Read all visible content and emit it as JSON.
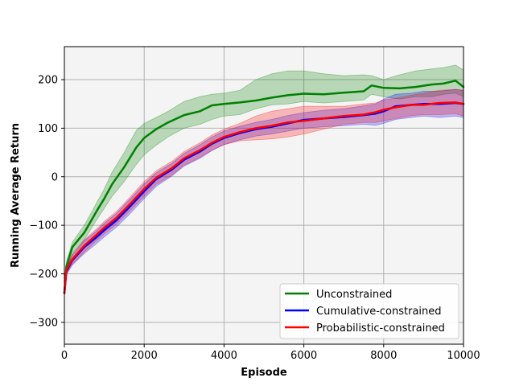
{
  "chart_data": {
    "type": "line",
    "title": "",
    "xlabel": "Episode",
    "ylabel": "Running Average Return",
    "xlim": [
      0,
      10000
    ],
    "ylim": [
      -345,
      268
    ],
    "xticks": [
      0,
      2000,
      4000,
      6000,
      8000,
      10000
    ],
    "yticks": [
      -300,
      -200,
      -100,
      0,
      100,
      200
    ],
    "xtick_labels": [
      "0",
      "2000",
      "4000",
      "6000",
      "8000",
      "10000"
    ],
    "ytick_labels": [
      "−300",
      "−200",
      "−100",
      "0",
      "100",
      "200"
    ],
    "grid": true,
    "legend_position": "bottom-right",
    "colors": {
      "Unconstrained": "#008000",
      "Cumulative-constrained": "#0000ff",
      "Probabilistic-constrained": "#ff0000",
      "plot_background": "#f4f4f4"
    },
    "series": [
      {
        "name": "Unconstrained",
        "x": [
          0,
          50,
          200,
          500,
          800,
          1000,
          1200,
          1500,
          1800,
          2000,
          2300,
          2600,
          3000,
          3400,
          3700,
          4000,
          4400,
          4800,
          5200,
          5600,
          6000,
          6500,
          7000,
          7500,
          7700,
          8000,
          8400,
          8800,
          9200,
          9500,
          9800,
          10000
        ],
        "y": [
          -240,
          -185,
          -145,
          -115,
          -72,
          -45,
          -15,
          20,
          60,
          80,
          98,
          112,
          127,
          135,
          147,
          150,
          153,
          157,
          163,
          168,
          171,
          170,
          173,
          176,
          188,
          183,
          182,
          185,
          190,
          192,
          198,
          185
        ],
        "upper": [
          -235,
          -175,
          -135,
          -100,
          -55,
          -25,
          10,
          50,
          95,
          110,
          122,
          135,
          155,
          165,
          170,
          172,
          178,
          200,
          212,
          218,
          218,
          212,
          208,
          210,
          208,
          200,
          210,
          218,
          222,
          225,
          230,
          220
        ],
        "lower": [
          -245,
          -195,
          -158,
          -130,
          -90,
          -65,
          -40,
          -10,
          25,
          45,
          65,
          82,
          100,
          108,
          118,
          125,
          128,
          140,
          148,
          150,
          155,
          152,
          155,
          158,
          170,
          165,
          160,
          165,
          165,
          170,
          172,
          165
        ]
      },
      {
        "name": "Cumulative-constrained",
        "x": [
          0,
          50,
          200,
          500,
          800,
          1000,
          1300,
          1600,
          2000,
          2300,
          2700,
          3000,
          3400,
          3700,
          4000,
          4400,
          4800,
          5200,
          5600,
          6000,
          6500,
          7000,
          7500,
          7800,
          8000,
          8300,
          8700,
          9000,
          9400,
          9800,
          10000
        ],
        "y": [
          -240,
          -195,
          -172,
          -145,
          -125,
          -110,
          -90,
          -65,
          -30,
          -5,
          15,
          35,
          52,
          68,
          80,
          90,
          98,
          103,
          110,
          117,
          120,
          123,
          127,
          130,
          135,
          145,
          148,
          150,
          150,
          152,
          150
        ],
        "upper": [
          -235,
          -188,
          -162,
          -132,
          -112,
          -96,
          -76,
          -50,
          -15,
          8,
          28,
          48,
          66,
          82,
          94,
          104,
          112,
          118,
          126,
          132,
          137,
          140,
          146,
          150,
          160,
          170,
          172,
          176,
          176,
          180,
          178
        ],
        "lower": [
          -245,
          -202,
          -182,
          -158,
          -138,
          -124,
          -104,
          -80,
          -45,
          -20,
          2,
          22,
          38,
          54,
          66,
          76,
          84,
          88,
          94,
          100,
          103,
          105,
          108,
          106,
          110,
          118,
          122,
          125,
          122,
          125,
          122
        ]
      },
      {
        "name": "Probabilistic-constrained",
        "x": [
          0,
          50,
          200,
          500,
          800,
          1000,
          1300,
          1600,
          2000,
          2300,
          2700,
          3000,
          3400,
          3700,
          4000,
          4400,
          4800,
          5200,
          5600,
          6000,
          6500,
          7000,
          7500,
          7800,
          8000,
          8300,
          8700,
          9000,
          9400,
          9800,
          10000
        ],
        "y": [
          -240,
          -192,
          -170,
          -142,
          -120,
          -105,
          -85,
          -60,
          -25,
          -2,
          18,
          38,
          55,
          70,
          82,
          92,
          100,
          105,
          112,
          115,
          120,
          125,
          128,
          133,
          138,
          143,
          148,
          148,
          152,
          153,
          150
        ],
        "upper": [
          -235,
          -185,
          -160,
          -130,
          -108,
          -92,
          -72,
          -46,
          -10,
          12,
          32,
          52,
          70,
          86,
          98,
          110,
          125,
          135,
          140,
          145,
          145,
          145,
          150,
          152,
          158,
          162,
          168,
          172,
          178,
          180,
          178
        ],
        "lower": [
          -245,
          -200,
          -180,
          -155,
          -132,
          -118,
          -98,
          -74,
          -40,
          -16,
          4,
          24,
          40,
          55,
          66,
          74,
          76,
          78,
          82,
          88,
          98,
          108,
          112,
          112,
          115,
          120,
          126,
          128,
          128,
          130,
          125
        ]
      }
    ]
  }
}
